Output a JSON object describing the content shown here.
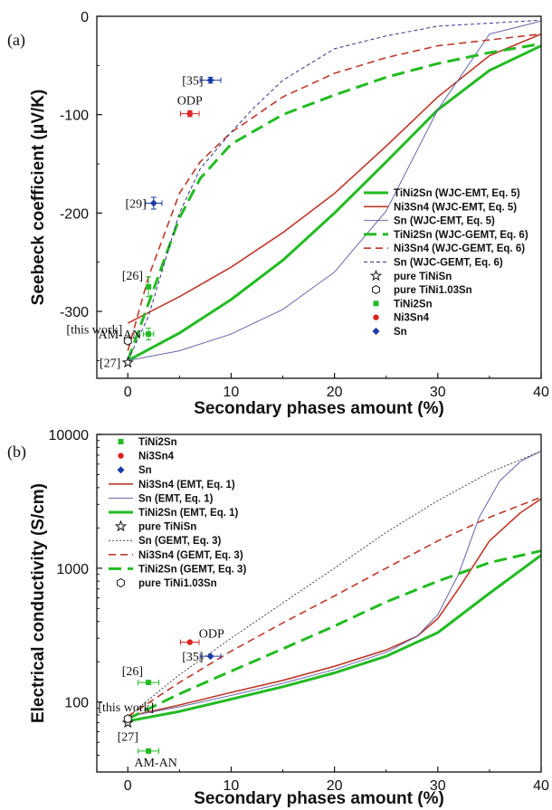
{
  "chart_data": [
    {
      "panel": "(a)",
      "type": "line",
      "xlabel": "Secondary phases amount (%)",
      "ylabel": "Seebeck coefficient (μV/K)",
      "xlim": [
        -3,
        40
      ],
      "ylim": [
        -368,
        0
      ],
      "yscale": "linear",
      "xticks": [
        0,
        10,
        20,
        30,
        40
      ],
      "yticks": [
        0,
        -100,
        -200,
        -300
      ],
      "legend_position": "lower-right",
      "series": [
        {
          "name": "TiNi2Sn (WJC-EMT, Eq. 5)",
          "color": "#22bb22",
          "dash": "solid",
          "width": 3,
          "x": [
            0,
            5,
            10,
            15,
            20,
            25,
            30,
            35,
            40
          ],
          "y": [
            -350,
            -322,
            -288,
            -248,
            -200,
            -148,
            -95,
            -55,
            -30
          ]
        },
        {
          "name": "Ni3Sn4 (WJC-EMT, Eq. 5)",
          "color": "#c0392b",
          "dash": "solid",
          "width": 1.6,
          "x": [
            0,
            5,
            10,
            15,
            20,
            25,
            30,
            35,
            40
          ],
          "y": [
            -312,
            -285,
            -255,
            -220,
            -180,
            -132,
            -82,
            -40,
            -18
          ]
        },
        {
          "name": "Sn (WJC-EMT, Eq. 5)",
          "color": "#6666aa",
          "dash": "solid",
          "width": 1,
          "x": [
            0,
            5,
            10,
            15,
            20,
            25,
            30,
            35,
            40
          ],
          "y": [
            -350,
            -340,
            -323,
            -298,
            -260,
            -198,
            -95,
            -18,
            -5
          ]
        },
        {
          "name": "TiNi2Sn (WJC-GEMT, Eq. 6)",
          "color": "#22bb22",
          "dash": "long",
          "width": 3,
          "x": [
            0,
            2,
            5,
            7,
            10,
            15,
            20,
            25,
            30,
            35,
            40
          ],
          "y": [
            -350,
            -292,
            -205,
            -165,
            -130,
            -100,
            -80,
            -62,
            -48,
            -37,
            -28
          ]
        },
        {
          "name": "Ni3Sn4 (WJC-GEMT, Eq. 6)",
          "color": "#c0392b",
          "dash": "med",
          "width": 1.6,
          "x": [
            0,
            2,
            5,
            7,
            10,
            15,
            20,
            25,
            30,
            35,
            40
          ],
          "y": [
            -340,
            -265,
            -180,
            -148,
            -118,
            -82,
            -58,
            -42,
            -30,
            -24,
            -18
          ]
        },
        {
          "name": "Sn (WJC-GEMT, Eq. 6)",
          "color": "#333388",
          "dash": "short",
          "width": 1,
          "x": [
            0,
            2,
            5,
            7,
            10,
            12,
            15,
            20,
            25,
            30,
            35,
            40
          ],
          "y": [
            -350,
            -305,
            -200,
            -155,
            -118,
            -95,
            -65,
            -33,
            -20,
            -10,
            -7,
            -4
          ]
        }
      ],
      "points": [
        {
          "legend": "pure TiNiSn",
          "marker": "star",
          "x": 0,
          "y": -352,
          "label": "[27]",
          "label_side": "left"
        },
        {
          "legend": "pure TiNi1.03Sn",
          "marker": "hexagon",
          "x": 0,
          "y": -330,
          "label": "[this work]",
          "label_side": "left-up"
        },
        {
          "legend": "TiNi2Sn",
          "marker": "square",
          "color": "#22bb22",
          "x": 2,
          "y": -275,
          "xerr": 0,
          "yerr": 10,
          "label": "[26]",
          "label_side": "left-up"
        },
        {
          "legend": "TiNi2Sn",
          "marker": "square",
          "color": "#22bb22",
          "x": 2,
          "y": -323,
          "xerr": 0.5,
          "yerr": 6,
          "label": "AM-AN",
          "label_side": "left"
        },
        {
          "legend": "Ni3Sn4",
          "marker": "circle",
          "color": "#dd2222",
          "x": 6,
          "y": -99,
          "xerr": 0.9,
          "yerr": 3,
          "label": "ODP",
          "label_side": "up"
        },
        {
          "legend": "Sn",
          "marker": "diamond",
          "color": "#1a3aa8",
          "x": 8,
          "y": -65,
          "xerr": 1,
          "yerr": 3,
          "label": "[35]",
          "label_side": "left"
        },
        {
          "legend": "Sn",
          "marker": "diamond",
          "color": "#1a3aa8",
          "x": 2.5,
          "y": -190,
          "xerr": 0.8,
          "yerr": 6,
          "label": "[29]",
          "label_side": "left"
        }
      ],
      "legend": [
        {
          "text": "TiNi2Sn (WJC-EMT, Eq. 5)",
          "kind": "line",
          "color": "#22bb22",
          "dash": "solid",
          "width": 3
        },
        {
          "text": "Ni3Sn4 (WJC-EMT, Eq. 5)",
          "kind": "line",
          "color": "#c0392b",
          "dash": "solid",
          "width": 1.6
        },
        {
          "text": "Sn (WJC-EMT, Eq. 5)",
          "kind": "line",
          "color": "#6666aa",
          "dash": "solid",
          "width": 1
        },
        {
          "text": "TiNi2Sn (WJC-GEMT, Eq. 6)",
          "kind": "line",
          "color": "#22bb22",
          "dash": "long",
          "width": 3
        },
        {
          "text": "Ni3Sn4 (WJC-GEMT, Eq. 6)",
          "kind": "line",
          "color": "#c0392b",
          "dash": "med",
          "width": 1.6
        },
        {
          "text": "Sn (WJC-GEMT, Eq. 6)",
          "kind": "line",
          "color": "#333388",
          "dash": "short",
          "width": 1
        },
        {
          "text": "pure TiNiSn",
          "kind": "star"
        },
        {
          "text": "pure TiNi1.03Sn",
          "kind": "hexagon"
        },
        {
          "text": "TiNi2Sn",
          "kind": "square",
          "color": "#22bb22"
        },
        {
          "text": "Ni3Sn4",
          "kind": "circle",
          "color": "#dd2222"
        },
        {
          "text": "Sn",
          "kind": "diamond",
          "color": "#1a3aa8"
        }
      ]
    },
    {
      "panel": "(b)",
      "type": "line",
      "xlabel": "Secondary phases amount (%)",
      "ylabel": "Electrical conductivity (S/cm)",
      "xlim": [
        -3,
        40
      ],
      "ylim": [
        30,
        10000
      ],
      "yscale": "log",
      "xticks": [
        0,
        10,
        20,
        30,
        40
      ],
      "yticks": [
        10000,
        1000,
        100
      ],
      "legend_position": "top-left",
      "series": [
        {
          "name": "Ni3Sn4 (EMT, Eq. 1)",
          "color": "#c0392b",
          "dash": "solid",
          "width": 1.6,
          "x": [
            0,
            5,
            10,
            15,
            20,
            25,
            28,
            30,
            32,
            35,
            38,
            40
          ],
          "y": [
            78,
            95,
            118,
            145,
            185,
            245,
            310,
            420,
            700,
            1600,
            2600,
            3300
          ]
        },
        {
          "name": "Sn (EMT, Eq. 1)",
          "color": "#6666aa",
          "dash": "solid",
          "width": 1,
          "x": [
            0,
            5,
            10,
            15,
            20,
            25,
            28,
            30,
            32,
            34,
            36,
            38,
            40
          ],
          "y": [
            78,
            92,
            112,
            138,
            175,
            235,
            310,
            450,
            900,
            2400,
            4500,
            6300,
            7500
          ]
        },
        {
          "name": "TiNi2Sn (EMT, Eq. 1)",
          "color": "#22bb22",
          "dash": "solid",
          "width": 3,
          "x": [
            0,
            5,
            10,
            15,
            20,
            25,
            30,
            35,
            40
          ],
          "y": [
            72,
            85,
            105,
            130,
            165,
            220,
            330,
            650,
            1250
          ]
        },
        {
          "name": "Sn (GEMT, Eq. 3)",
          "color": "#444444",
          "dash": "dot",
          "width": 1,
          "x": [
            0,
            5,
            10,
            15,
            20,
            25,
            30,
            35,
            40
          ],
          "y": [
            78,
            160,
            300,
            550,
            1000,
            1850,
            3200,
            5200,
            7500
          ]
        },
        {
          "name": "Ni3Sn4 (GEMT, Eq. 3)",
          "color": "#c0392b",
          "dash": "med",
          "width": 1.6,
          "x": [
            0,
            5,
            10,
            15,
            20,
            25,
            30,
            35,
            40
          ],
          "y": [
            78,
            140,
            240,
            390,
            620,
            1000,
            1600,
            2400,
            3400
          ]
        },
        {
          "name": "TiNi2Sn (GEMT, Eq. 3)",
          "color": "#22bb22",
          "dash": "long",
          "width": 3,
          "x": [
            0,
            5,
            10,
            15,
            20,
            25,
            30,
            35,
            40
          ],
          "y": [
            75,
            115,
            170,
            250,
            370,
            560,
            800,
            1100,
            1350
          ]
        }
      ],
      "points": [
        {
          "legend": "pure TiNiSn",
          "marker": "star",
          "x": 0,
          "y": 70,
          "label": "[27]",
          "label_side": "down"
        },
        {
          "legend": "pure TiNi1.03Sn",
          "marker": "hexagon",
          "x": 0,
          "y": 75,
          "label": "[this work]",
          "label_side": "up"
        },
        {
          "legend": "TiNi2Sn",
          "marker": "square",
          "color": "#22bb22",
          "x": 2,
          "y": 140,
          "xerr": 1,
          "label": "[26]",
          "label_side": "left-up"
        },
        {
          "legend": "TiNi2Sn",
          "marker": "square",
          "color": "#22bb22",
          "x": 2,
          "y": 43,
          "xerr": 1,
          "label": "AM-AN",
          "label_side": "down"
        },
        {
          "legend": "Ni3Sn4",
          "marker": "circle",
          "color": "#dd2222",
          "x": 6,
          "y": 280,
          "xerr": 0.9,
          "label": "ODP",
          "label_side": "right-up"
        },
        {
          "legend": "Sn",
          "marker": "diamond",
          "color": "#1a3aa8",
          "x": 8,
          "y": 220,
          "xerr": 1,
          "label": "[35]",
          "label_side": "left"
        }
      ],
      "legend": [
        {
          "text": "TiNi2Sn",
          "kind": "square",
          "color": "#22bb22"
        },
        {
          "text": "Ni3Sn4",
          "kind": "circle",
          "color": "#dd2222"
        },
        {
          "text": "Sn",
          "kind": "diamond",
          "color": "#1a3aa8"
        },
        {
          "text": "Ni3Sn4 (EMT, Eq. 1)",
          "kind": "line",
          "color": "#c0392b",
          "dash": "solid",
          "width": 1.6
        },
        {
          "text": "Sn (EMT, Eq. 1)",
          "kind": "line",
          "color": "#6666aa",
          "dash": "solid",
          "width": 1
        },
        {
          "text": "TiNi2Sn (EMT, Eq. 1)",
          "kind": "line",
          "color": "#22bb22",
          "dash": "solid",
          "width": 3
        },
        {
          "text": "pure TiNiSn",
          "kind": "star"
        },
        {
          "text": "Sn (GEMT, Eq. 3)",
          "kind": "line",
          "color": "#444444",
          "dash": "dot",
          "width": 1
        },
        {
          "text": "Ni3Sn4 (GEMT, Eq. 3)",
          "kind": "line",
          "color": "#c0392b",
          "dash": "med",
          "width": 1.6
        },
        {
          "text": "TiNi2Sn (GEMT, Eq. 3)",
          "kind": "line",
          "color": "#22bb22",
          "dash": "long",
          "width": 3
        },
        {
          "text": "pure TiNi1.03Sn",
          "kind": "hexagon"
        }
      ]
    }
  ]
}
